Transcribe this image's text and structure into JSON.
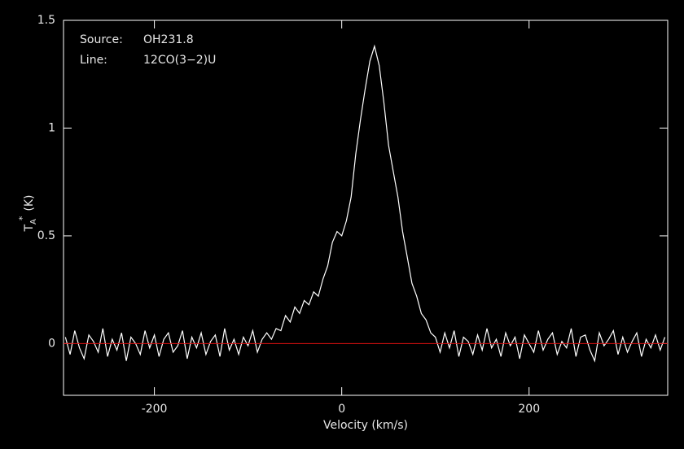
{
  "chart_data": {
    "type": "line",
    "xlabel": "Velocity (km/s)",
    "ylabel": {
      "main": "T",
      "sub": "A",
      "sup": "*",
      "unit": "(K)"
    },
    "annotations": [
      {
        "key": "Source:",
        "text": "OH231.8"
      },
      {
        "key": "Line:",
        "text": "12CO(3−2)U"
      }
    ],
    "xlim": [
      -297,
      348
    ],
    "ylim": [
      -0.24,
      1.5
    ],
    "xticks": [
      -200,
      0,
      200
    ],
    "yticks": [
      0,
      0.5,
      1,
      1.5
    ],
    "color": "#ffffff",
    "baseline": {
      "value": 0,
      "color": "#e01010"
    },
    "x": [
      -295,
      -290,
      -285,
      -280,
      -275,
      -270,
      -265,
      -260,
      -255,
      -250,
      -245,
      -240,
      -235,
      -230,
      -225,
      -220,
      -215,
      -210,
      -205,
      -200,
      -195,
      -190,
      -185,
      -180,
      -175,
      -170,
      -165,
      -160,
      -155,
      -150,
      -145,
      -140,
      -135,
      -130,
      -125,
      -120,
      -115,
      -110,
      -105,
      -100,
      -95,
      -90,
      -85,
      -80,
      -75,
      -70,
      -65,
      -60,
      -55,
      -50,
      -45,
      -40,
      -35,
      -30,
      -25,
      -20,
      -15,
      -10,
      -5,
      0,
      5,
      10,
      15,
      20,
      25,
      30,
      35,
      40,
      45,
      50,
      55,
      60,
      65,
      70,
      75,
      80,
      85,
      90,
      95,
      100,
      105,
      110,
      115,
      120,
      125,
      130,
      135,
      140,
      145,
      150,
      155,
      160,
      165,
      170,
      175,
      180,
      185,
      190,
      195,
      200,
      205,
      210,
      215,
      220,
      225,
      230,
      235,
      240,
      245,
      250,
      255,
      260,
      265,
      270,
      275,
      280,
      285,
      290,
      295,
      300,
      305,
      310,
      315,
      320,
      325,
      330,
      335,
      340,
      345
    ],
    "values": [
      0.03,
      -0.05,
      0.06,
      -0.02,
      -0.07,
      0.04,
      0.01,
      -0.04,
      0.07,
      -0.06,
      0.02,
      -0.03,
      0.05,
      -0.08,
      0.03,
      0.0,
      -0.05,
      0.06,
      -0.02,
      0.04,
      -0.06,
      0.02,
      0.05,
      -0.04,
      -0.01,
      0.06,
      -0.07,
      0.03,
      -0.02,
      0.05,
      -0.05,
      0.01,
      0.04,
      -0.06,
      0.07,
      -0.03,
      0.02,
      -0.05,
      0.03,
      -0.01,
      0.06,
      -0.04,
      0.02,
      0.05,
      0.02,
      0.07,
      0.06,
      0.13,
      0.1,
      0.17,
      0.14,
      0.2,
      0.18,
      0.24,
      0.22,
      0.3,
      0.36,
      0.47,
      0.52,
      0.5,
      0.57,
      0.68,
      0.88,
      1.04,
      1.18,
      1.31,
      1.38,
      1.29,
      1.12,
      0.92,
      0.8,
      0.68,
      0.52,
      0.4,
      0.28,
      0.22,
      0.14,
      0.11,
      0.05,
      0.03,
      -0.04,
      0.05,
      -0.02,
      0.06,
      -0.06,
      0.03,
      0.01,
      -0.05,
      0.04,
      -0.03,
      0.07,
      -0.02,
      0.02,
      -0.06,
      0.05,
      -0.01,
      0.03,
      -0.07,
      0.04,
      0.0,
      -0.04,
      0.06,
      -0.03,
      0.02,
      0.05,
      -0.05,
      0.01,
      -0.02,
      0.07,
      -0.06,
      0.03,
      0.04,
      -0.03,
      -0.08,
      0.05,
      -0.01,
      0.02,
      0.06,
      -0.05,
      0.03,
      -0.04,
      0.01,
      0.05,
      -0.06,
      0.02,
      -0.02,
      0.04,
      -0.03,
      0.03
    ]
  }
}
